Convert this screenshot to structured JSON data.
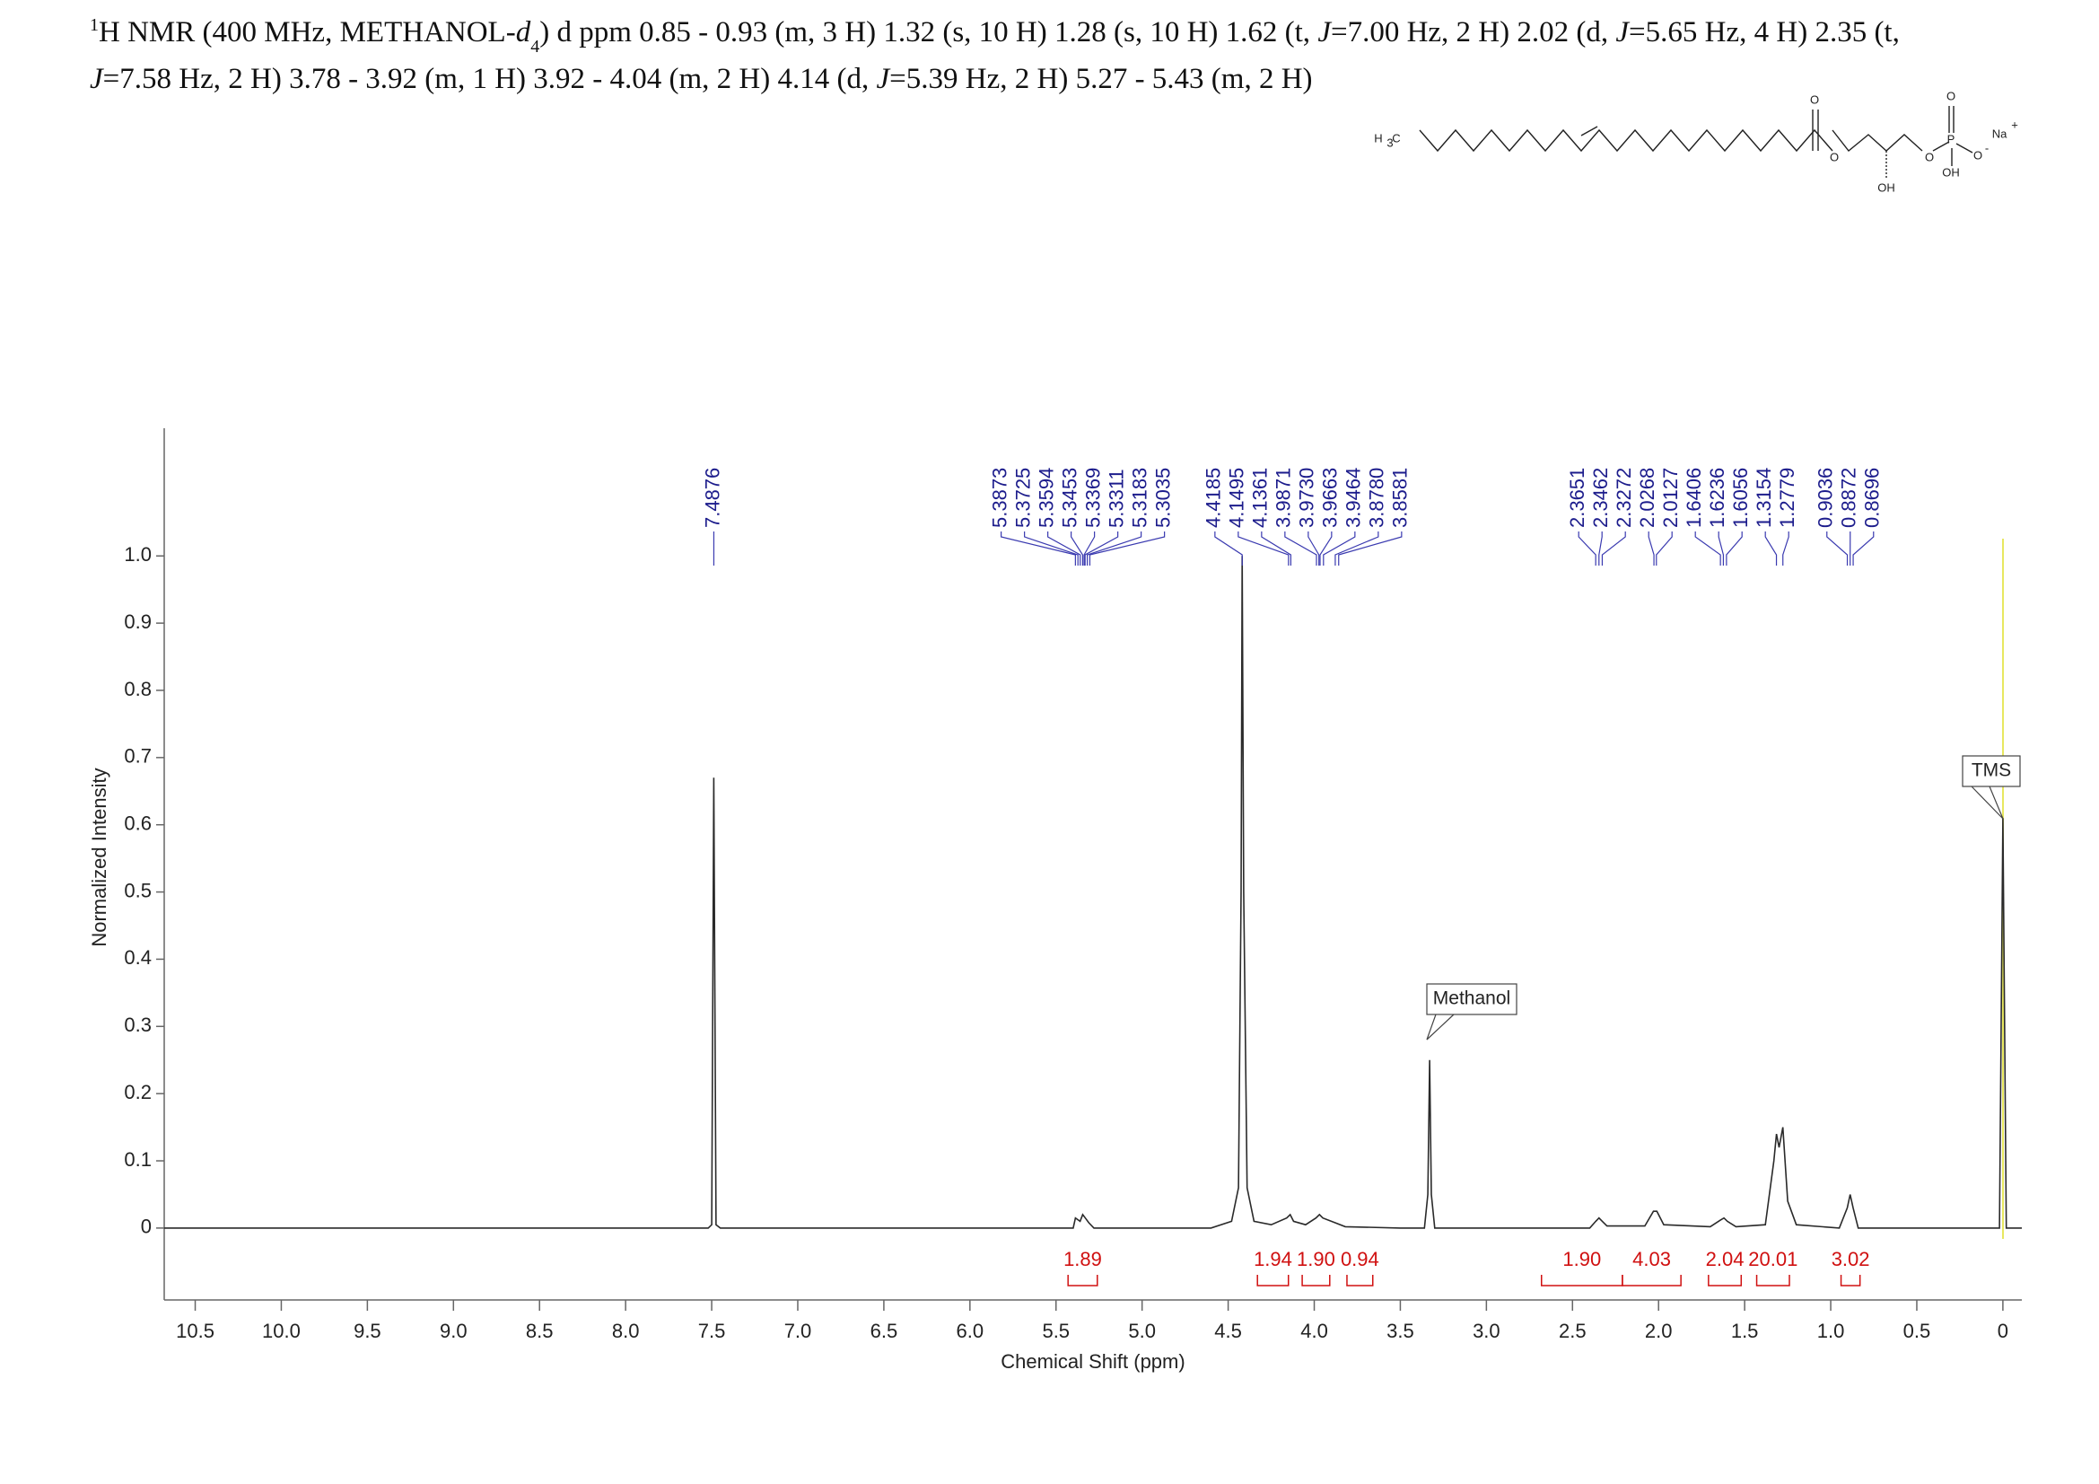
{
  "chart_data": {
    "type": "nmr",
    "header": [
      [
        "1",
        "H NMR (400 MHz, METHANOL-",
        "d",
        "4",
        ") d ppm 0.85 - 0.93 (m, 3 H) 1.32 (s, 10 H) 1.28 (s, 10 H) 1.62 (t, ",
        "J",
        "=7.00 Hz, 2 H) 2.02 (d, ",
        "J",
        "=5.65 Hz, 4 H) 2.35 (t,"
      ],
      [
        "J",
        "=7.58 Hz, 2 H) 3.78 - 3.92 (m, 1 H) 3.92 - 4.04 (m, 2 H) 4.14 (d, ",
        "J",
        "=5.39 Hz, 2 H) 5.27 - 5.43 (m, 2 H)"
      ]
    ],
    "x_label": "Chemical Shift (ppm)",
    "y_label": "Normalized Intensity",
    "xlim": [
      10.68,
      -0.11
    ],
    "ylim": [
      -0.107,
      1.19
    ],
    "xticks": [
      10.5,
      {
        "value": 10,
        "label": "10.0"
      },
      9.5,
      {
        "value": 9,
        "label": "9.0"
      },
      8.5,
      {
        "value": 8,
        "label": "8.0"
      },
      7.5,
      {
        "value": 7,
        "label": "7.0"
      },
      6.5,
      {
        "value": 6,
        "label": "6.0"
      },
      5.5,
      {
        "value": 5,
        "label": "5.0"
      },
      4.5,
      {
        "value": 4,
        "label": "4.0"
      },
      3.5,
      {
        "value": 3,
        "label": "3.0"
      },
      2.5,
      {
        "value": 2,
        "label": "2.0"
      },
      1.5,
      {
        "value": 1,
        "label": "1.0"
      },
      0.5,
      0
    ],
    "yticks": [
      0,
      0.1,
      0.2,
      0.3,
      0.4,
      0.5,
      0.6,
      0.7,
      0.8,
      0.9,
      {
        "value": 1,
        "label": "1.0"
      }
    ],
    "color": "#2a2a2a",
    "x": [
      10.68,
      7.52,
      7.5,
      7.4876,
      7.475,
      7.45,
      5.4,
      5.387,
      5.36,
      5.345,
      5.33,
      5.31,
      5.28,
      4.6,
      4.48,
      4.44,
      4.425,
      4.4185,
      4.41,
      4.39,
      4.35,
      4.25,
      4.16,
      4.14,
      4.12,
      4.05,
      3.99,
      3.97,
      3.95,
      3.88,
      3.82,
      3.5,
      3.36,
      3.34,
      3.33,
      3.32,
      3.3,
      2.4,
      2.365,
      2.346,
      2.327,
      2.3,
      2.08,
      2.03,
      2.01,
      1.97,
      1.7,
      1.64,
      1.62,
      1.6,
      1.55,
      1.38,
      1.33,
      1.315,
      1.3,
      1.278,
      1.25,
      1.2,
      0.95,
      0.904,
      0.887,
      0.87,
      0.84,
      0.02,
      0,
      -0.02,
      -0.11
    ],
    "values": [
      0,
      0,
      0.005,
      0.67,
      0.005,
      0,
      0,
      0.015,
      0.01,
      0.02,
      0.015,
      0.008,
      0,
      0,
      0.01,
      0.06,
      0.5,
      1.0,
      0.5,
      0.06,
      0.01,
      0.005,
      0.015,
      0.02,
      0.01,
      0.005,
      0.015,
      0.02,
      0.015,
      0.008,
      0.002,
      0,
      0,
      0.05,
      0.25,
      0.05,
      0,
      0,
      0.01,
      0.015,
      0.01,
      0.003,
      0.003,
      0.025,
      0.025,
      0.005,
      0.002,
      0.012,
      0.015,
      0.01,
      0.002,
      0.005,
      0.1,
      0.14,
      0.12,
      0.15,
      0.04,
      0.005,
      0,
      0.03,
      0.05,
      0.03,
      0,
      0,
      0.61,
      0,
      0
    ],
    "peak_groups": [
      [
        7.4876
      ],
      [
        5.3873,
        5.3725,
        5.3594,
        5.3453,
        5.3369,
        5.3311,
        5.3183,
        5.3035
      ],
      [
        4.4185,
        4.1495,
        4.1361,
        3.9871,
        {
          "value": 3.973,
          "label": "3.9730"
        },
        3.9663,
        3.9464,
        {
          "value": 3.878,
          "label": "3.8780"
        },
        3.8581
      ],
      [
        2.3651,
        2.3462,
        2.3272,
        2.0268,
        2.0127,
        1.6406,
        1.6236,
        1.6056,
        1.3154,
        1.2779
      ],
      [
        0.9036,
        0.8872,
        0.8696
      ]
    ],
    "integrals": [
      {
        "from": 5.43,
        "to": 5.26,
        "value": 1.89
      },
      {
        "from": 4.33,
        "to": 4.15,
        "value": 1.94
      },
      {
        "from": 4.07,
        "to": 3.91,
        "value": 1.9,
        "value_label": "1.90"
      },
      {
        "from": 3.81,
        "to": 3.66,
        "value": 0.94
      },
      {
        "from": 2.68,
        "to": 2.21,
        "value": 1.9,
        "value_label": "1.90"
      },
      {
        "from": 2.21,
        "to": 1.87,
        "value": 4.03
      },
      {
        "from": 1.71,
        "to": 1.52,
        "value": 2.04
      },
      {
        "from": 1.43,
        "to": 1.24,
        "value": 20.01
      },
      {
        "from": 0.94,
        "to": 0.83,
        "value": 3.02
      }
    ],
    "annotations": [
      {
        "text": "Methanol"
      },
      {
        "text": "TMS"
      }
    ],
    "structure_labels": [
      "H",
      "3",
      "C",
      "O",
      "O",
      "OH",
      "O",
      "P",
      "O",
      "O",
      "-",
      "OH",
      "Na",
      "+"
    ]
  }
}
